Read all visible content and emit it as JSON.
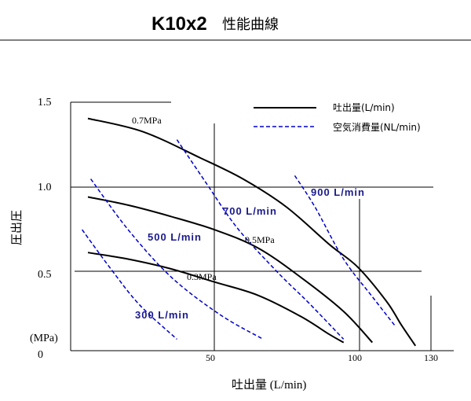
{
  "header": {
    "title": "K10x2",
    "subtitle": "性能曲線"
  },
  "chart_data": {
    "type": "line",
    "xlabel": "吐出量 (L/min)",
    "ylabel": "圧出圧",
    "yunit": "(MPa)",
    "xlim": [
      0,
      130
    ],
    "ylim": [
      0,
      1.5
    ],
    "x_ticks": [
      "50",
      "100",
      "130"
    ],
    "y_ticks": [
      "1.5",
      "1.0",
      "0.5",
      "0"
    ],
    "legend": [
      {
        "label": "吐出量(L/min)",
        "style": "solid",
        "color": "#000000"
      },
      {
        "label": "空気消費量(NL/min)",
        "style": "dashed",
        "color": "#0000cc"
      }
    ],
    "legend_position": "top-right",
    "pressure_series": [
      {
        "name": "0.7MPa",
        "points": [
          [
            6,
            1.42
          ],
          [
            25,
            1.34
          ],
          [
            45,
            1.18
          ],
          [
            60,
            1.05
          ],
          [
            75,
            0.88
          ],
          [
            90,
            0.65
          ],
          [
            100,
            0.51
          ],
          [
            110,
            0.3
          ],
          [
            115,
            0.16
          ],
          [
            120,
            0.03
          ]
        ]
      },
      {
        "name": "0.5MPa",
        "points": [
          [
            6,
            0.94
          ],
          [
            20,
            0.89
          ],
          [
            35,
            0.82
          ],
          [
            50,
            0.74
          ],
          [
            65,
            0.63
          ],
          [
            80,
            0.45
          ],
          [
            95,
            0.24
          ],
          [
            105,
            0.05
          ]
        ]
      },
      {
        "name": "0.3MPa",
        "points": [
          [
            6,
            0.6
          ],
          [
            20,
            0.56
          ],
          [
            35,
            0.5
          ],
          [
            50,
            0.42
          ],
          [
            65,
            0.34
          ],
          [
            80,
            0.21
          ],
          [
            90,
            0.1
          ],
          [
            95,
            0.05
          ]
        ]
      }
    ],
    "air_series": [
      {
        "name": "300 L/min",
        "points": [
          [
            4,
            0.74
          ],
          [
            14,
            0.5
          ],
          [
            24,
            0.28
          ],
          [
            37,
            0.07
          ]
        ]
      },
      {
        "name": "500 L/min",
        "points": [
          [
            7,
            1.05
          ],
          [
            20,
            0.74
          ],
          [
            35,
            0.45
          ],
          [
            52,
            0.22
          ],
          [
            67,
            0.07
          ]
        ]
      },
      {
        "name": "700 L/min",
        "points": [
          [
            37,
            1.29
          ],
          [
            47,
            1.03
          ],
          [
            58,
            0.75
          ],
          [
            72,
            0.48
          ],
          [
            83,
            0.29
          ],
          [
            95,
            0.07
          ]
        ]
      },
      {
        "name": "900 L/min",
        "points": [
          [
            78,
            1.07
          ],
          [
            85,
            0.88
          ],
          [
            95,
            0.56
          ],
          [
            105,
            0.33
          ],
          [
            113,
            0.15
          ]
        ]
      }
    ],
    "labels": {
      "p07": "0.7MPa",
      "p05": "0.5MPa",
      "p03": "0.3MPa",
      "a300": "300 L/min",
      "a500": "500 L/min",
      "a700": "700 L/min",
      "a900": "900 L/min"
    }
  }
}
